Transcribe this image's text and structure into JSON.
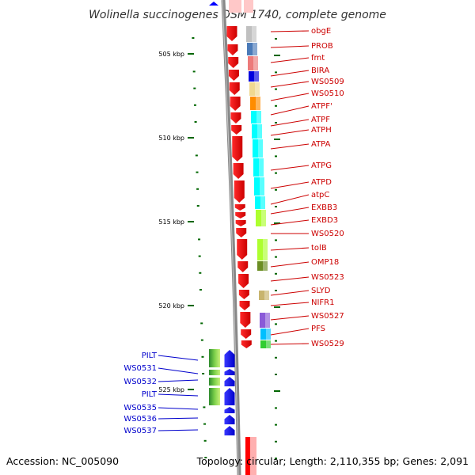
{
  "title": "Wolinella succinogenes DSM 1740, complete genome",
  "accession": "Accession: NC_005090",
  "topology": "Topology: circular; Length: 2,110,355 bp; Genes: 2,091",
  "colors": {
    "forward_label": "#cc0000",
    "reverse_label": "#0000cc",
    "forward_arrow": "#ff0000",
    "reverse_arrow": "#0000ff",
    "backbone": "#888888",
    "tick": "#006600"
  },
  "ticks": [
    "505 kbp",
    "510 kbp",
    "515 kbp",
    "520 kbp",
    "525 kbp"
  ],
  "forward_genes": [
    "obgE",
    "PROB",
    "fmt",
    "BIRA",
    "WS0509",
    "WS0510",
    "ATPF'",
    "ATPF",
    "ATPH",
    "ATPA",
    "ATPG",
    "ATPD",
    "atpC",
    "EXBB3",
    "EXBD3",
    "WS0520",
    "tolB",
    "OMP18",
    "WS0523",
    "SLYD",
    "NIFR1",
    "WS0527",
    "PFS",
    "WS0529"
  ],
  "reverse_genes": [
    "PILT",
    "WS0531",
    "WS0532",
    "PILT",
    "WS0535",
    "WS0536",
    "WS0537"
  ],
  "cog_colors": [
    "#c0c0c0",
    "#4a7ab8",
    "#ec7a7a",
    "#0000dd",
    "#f0d890",
    "#ff8c00",
    "#00ffff",
    "#00ffff",
    "#00ffff",
    "#00ffff",
    "#00ffff",
    "#00ffff",
    "#00ffff",
    "#adff2f",
    "#adff2f",
    "#adff2f",
    "#6b8e23",
    "#c8b46e",
    "#8a5ad8",
    "#00bfff",
    "#32cd32"
  ]
}
